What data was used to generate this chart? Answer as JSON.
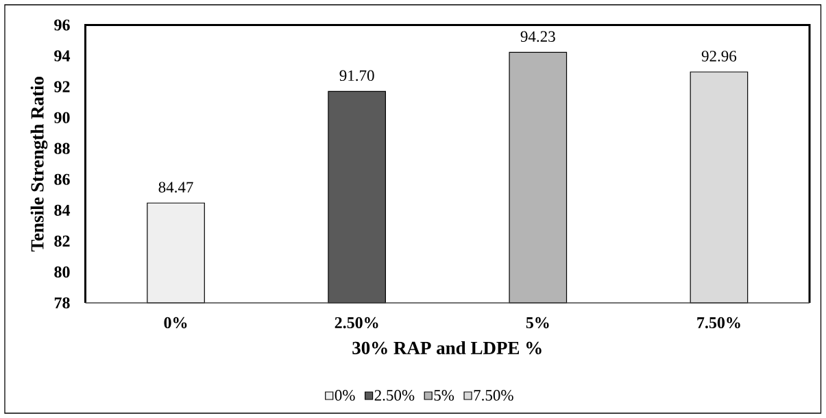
{
  "chart_data": {
    "type": "bar",
    "xlabel": "30% RAP and LDPE %",
    "ylabel": "Tensile Strength Ratio",
    "categories": [
      "0%",
      "2.50%",
      "5%",
      "7.50%"
    ],
    "series": [
      {
        "name": "0%",
        "color": "#efefef",
        "values": [
          84.47,
          null,
          null,
          null
        ],
        "value_labels": [
          "84.47",
          null,
          null,
          null
        ]
      },
      {
        "name": "2.50%",
        "color": "#5a5a5a",
        "values": [
          null,
          91.7,
          null,
          null
        ],
        "value_labels": [
          null,
          "91.70",
          null,
          null
        ]
      },
      {
        "name": "5%",
        "color": "#b4b4b4",
        "values": [
          null,
          null,
          94.23,
          null
        ],
        "value_labels": [
          null,
          null,
          "94.23",
          null
        ]
      },
      {
        "name": "7.50%",
        "color": "#dadada",
        "values": [
          null,
          null,
          null,
          92.96
        ],
        "value_labels": [
          null,
          null,
          null,
          "92.96"
        ]
      }
    ],
    "ylim": [
      78,
      96
    ],
    "yticks": [
      78,
      80,
      82,
      84,
      86,
      88,
      90,
      92,
      94,
      96
    ],
    "legend": "bottom"
  }
}
